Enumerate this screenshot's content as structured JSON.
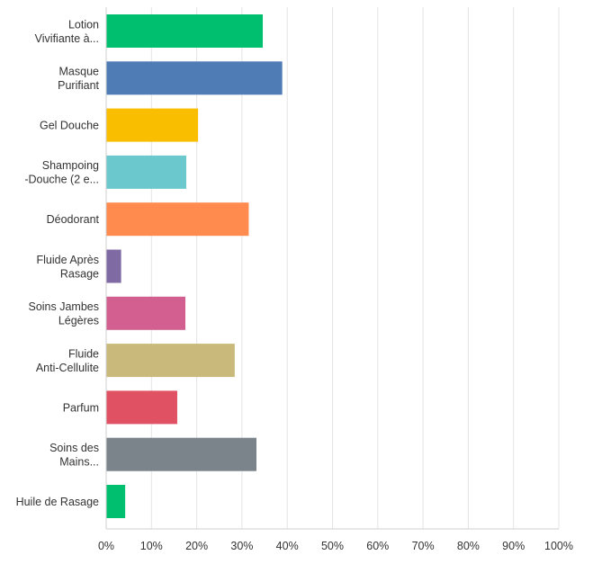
{
  "chart_data": {
    "type": "bar",
    "orientation": "horizontal",
    "categories": [
      [
        "Lotion",
        "Vivifiante à..."
      ],
      [
        "Masque",
        "Purifiant"
      ],
      [
        "Gel Douche"
      ],
      [
        "Shampoing",
        "-Douche (2 e..."
      ],
      [
        "Déodorant"
      ],
      [
        "Fluide Après",
        "Rasage"
      ],
      [
        "Soins Jambes",
        "Légères"
      ],
      [
        "Fluide",
        "Anti-Cellulite"
      ],
      [
        "Parfum"
      ],
      [
        "Soins des",
        "Mains..."
      ],
      [
        "Huile de Rasage"
      ]
    ],
    "values": [
      34.5,
      38.8,
      20.2,
      17.6,
      31.4,
      3.2,
      17.4,
      28.3,
      15.6,
      33.1,
      4.1
    ],
    "colors": [
      "#00bf6f",
      "#507cb6",
      "#f9be00",
      "#6bc8cd",
      "#ff8b4f",
      "#7f6aa3",
      "#d25f90",
      "#c9b97a",
      "#e05263",
      "#7b848b",
      "#00bf6f"
    ],
    "xticks": [
      "0%",
      "10%",
      "20%",
      "30%",
      "40%",
      "50%",
      "60%",
      "70%",
      "80%",
      "90%",
      "100%"
    ],
    "xlim": [
      0,
      100
    ],
    "grid": true,
    "title": "",
    "xlabel": "",
    "ylabel": ""
  }
}
